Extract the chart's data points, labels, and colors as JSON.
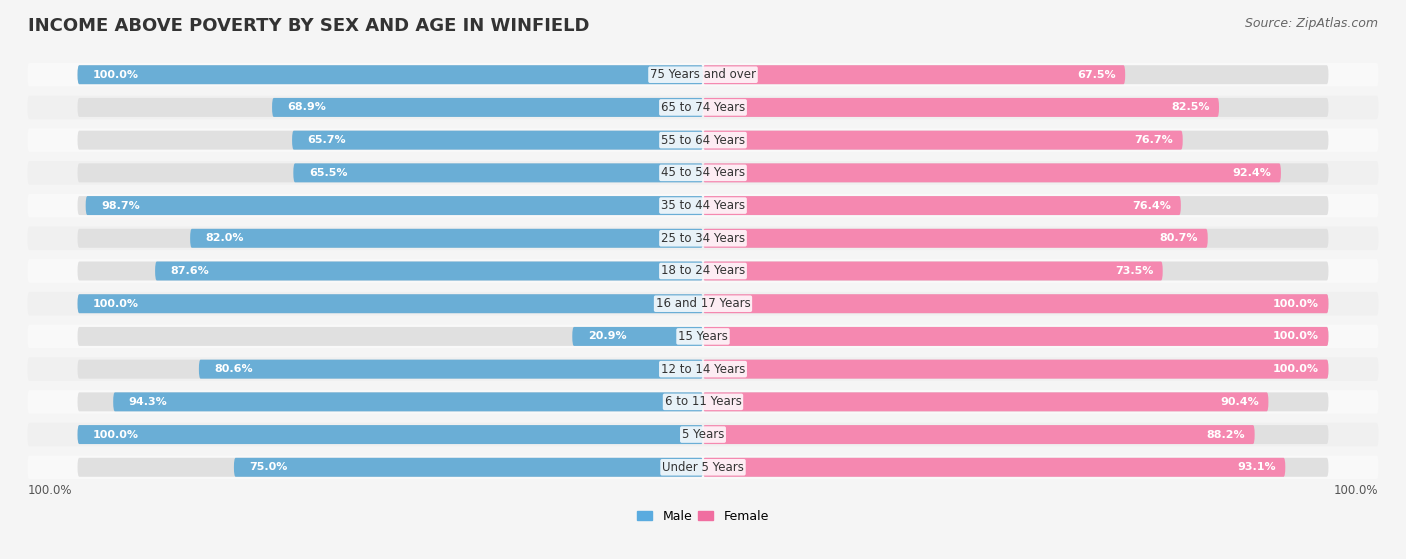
{
  "title": "INCOME ABOVE POVERTY BY SEX AND AGE IN WINFIELD",
  "source": "Source: ZipAtlas.com",
  "categories": [
    "Under 5 Years",
    "5 Years",
    "6 to 11 Years",
    "12 to 14 Years",
    "15 Years",
    "16 and 17 Years",
    "18 to 24 Years",
    "25 to 34 Years",
    "35 to 44 Years",
    "45 to 54 Years",
    "55 to 64 Years",
    "65 to 74 Years",
    "75 Years and over"
  ],
  "male_values": [
    75.0,
    100.0,
    94.3,
    80.6,
    20.9,
    100.0,
    87.6,
    82.0,
    98.7,
    65.5,
    65.7,
    68.9,
    100.0
  ],
  "female_values": [
    93.1,
    88.2,
    90.4,
    100.0,
    100.0,
    100.0,
    73.5,
    80.7,
    76.4,
    92.4,
    76.7,
    82.5,
    67.5
  ],
  "male_color": "#6aaed6",
  "female_color": "#f588b0",
  "male_color_light": "#a8d1ec",
  "female_color_light": "#f9c0d4",
  "bg_color": "#f5f5f5",
  "bar_bg_color": "#e8e8e8",
  "legend_male_color": "#5aabdf",
  "legend_female_color": "#f06ea0",
  "footer_value_left": "100.0%",
  "footer_value_right": "100.0%"
}
